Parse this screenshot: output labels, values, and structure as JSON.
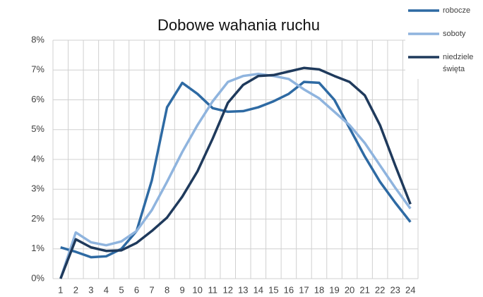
{
  "chart_data": {
    "type": "line",
    "title": "Dobowe wahania ruchu",
    "categories": [
      "1",
      "2",
      "3",
      "4",
      "5",
      "6",
      "7",
      "8",
      "9",
      "10",
      "11",
      "12",
      "13",
      "14",
      "15",
      "16",
      "17",
      "18",
      "19",
      "20",
      "21",
      "22",
      "23",
      "24"
    ],
    "series": [
      {
        "name": "robocze",
        "color": "#2e6aa3",
        "values": [
          1.05,
          0.9,
          0.72,
          0.75,
          1.0,
          1.6,
          3.3,
          5.75,
          6.57,
          6.2,
          5.72,
          5.6,
          5.62,
          5.75,
          5.95,
          6.2,
          6.6,
          6.57,
          6.0,
          5.05,
          4.1,
          3.25,
          2.55,
          1.9
        ]
      },
      {
        "name": "soboty",
        "color": "#8fb4de",
        "values": [
          0,
          1.55,
          1.22,
          1.12,
          1.25,
          1.6,
          2.3,
          3.25,
          4.25,
          5.15,
          5.95,
          6.6,
          6.8,
          6.87,
          6.8,
          6.7,
          6.35,
          6.05,
          5.6,
          5.15,
          4.55,
          3.8,
          3.05,
          2.35
        ]
      },
      {
        "name": "niedziele święta",
        "color": "#1f3a5c",
        "values": [
          0,
          1.32,
          1.05,
          0.93,
          0.95,
          1.2,
          1.6,
          2.05,
          2.75,
          3.6,
          4.7,
          5.9,
          6.5,
          6.8,
          6.83,
          6.95,
          7.07,
          7.02,
          6.8,
          6.6,
          6.15,
          5.15,
          3.8,
          2.5
        ]
      }
    ],
    "ylim": [
      0,
      8
    ],
    "yticks": [
      {
        "value": 0,
        "label": "0%"
      },
      {
        "value": 1,
        "label": "1%"
      },
      {
        "value": 2,
        "label": "2%"
      },
      {
        "value": 3,
        "label": "3%"
      },
      {
        "value": 4,
        "label": "4%"
      },
      {
        "value": 5,
        "label": "5%"
      },
      {
        "value": 6,
        "label": "6%"
      },
      {
        "value": 7,
        "label": "7%"
      },
      {
        "value": 8,
        "label": "8%"
      }
    ],
    "grid": true,
    "legend": "right"
  }
}
